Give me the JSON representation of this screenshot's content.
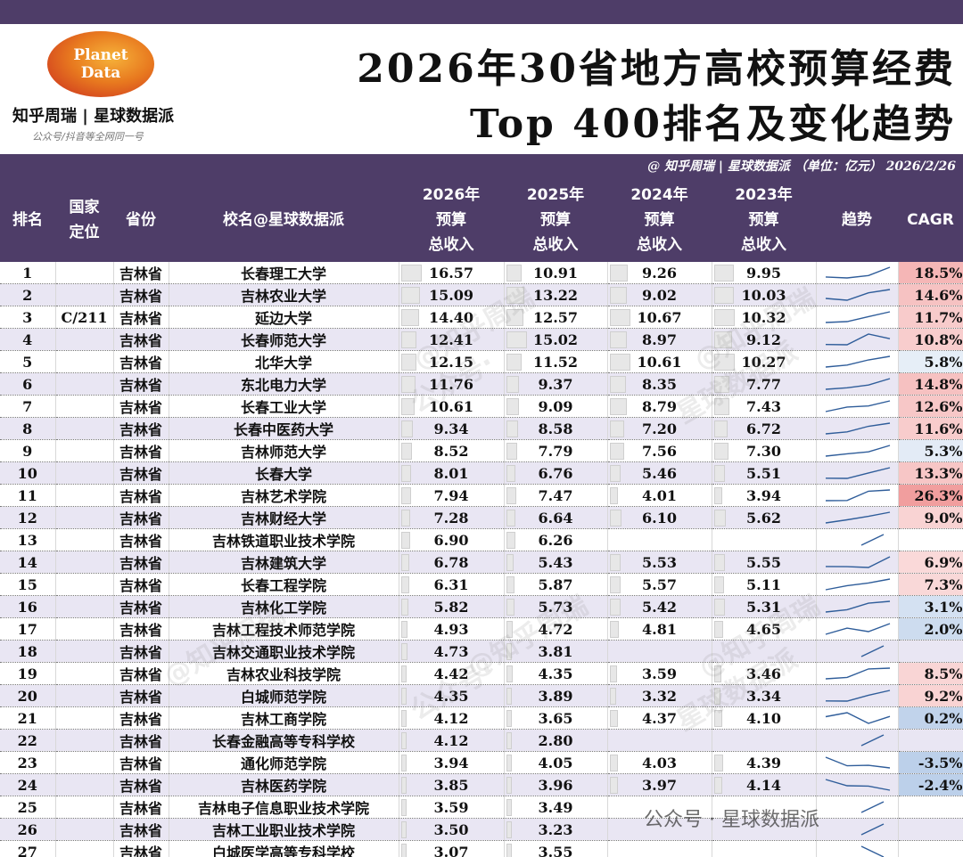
{
  "header": {
    "logo_line1": "Planet",
    "logo_line2": "Data",
    "brand": "知乎周瑞 | 星球数据派",
    "brand_sub": "公众号/抖音等全网同一号",
    "title_line1": "2026年30省地方高校预算经费",
    "title_line2": "Top 400排名及变化趋势",
    "subtitle": "@ 知乎周瑞 | 星球数据派 （单位：亿元） 2026/2/26"
  },
  "columns": {
    "rank": "排名",
    "pos_l1": "国家",
    "pos_l2": "定位",
    "province": "省份",
    "school": "校名@星球数据派",
    "y2026_l1": "2026年",
    "y2025_l1": "2025年",
    "y2024_l1": "2024年",
    "y2023_l1": "2023年",
    "budget": "预算",
    "total": "总收入",
    "trend": "趋势",
    "cagr": "CAGR"
  },
  "watermarks": {
    "handle": "@知乎周瑞",
    "account": "公众号·",
    "brand": "星球数据派",
    "bottom": "公众号 · 星球数据派"
  },
  "colors": {
    "header_bg": "#4e3d68",
    "cagr_positive": "#f4b6b6",
    "cagr_negative": "#bcd0ea",
    "trend_line": "#2f5d9a"
  },
  "chart_data": {
    "type": "table",
    "unit": "亿元",
    "columns": [
      "排名",
      "国家定位",
      "省份",
      "校名",
      "2026",
      "2025",
      "2024",
      "2023",
      "CAGR"
    ],
    "rows": [
      {
        "rank": "1",
        "pos": "",
        "province": "吉林省",
        "school": "长春理工大学",
        "y2026": 16.57,
        "y2025": 10.91,
        "y2024": 9.26,
        "y2023": 9.95,
        "cagr": "18.5%"
      },
      {
        "rank": "2",
        "pos": "",
        "province": "吉林省",
        "school": "吉林农业大学",
        "y2026": 15.09,
        "y2025": 13.22,
        "y2024": 9.02,
        "y2023": 10.03,
        "cagr": "14.6%"
      },
      {
        "rank": "3",
        "pos": "C/211",
        "province": "吉林省",
        "school": "延边大学",
        "y2026": 14.4,
        "y2025": 12.57,
        "y2024": 10.67,
        "y2023": 10.32,
        "cagr": "11.7%"
      },
      {
        "rank": "4",
        "pos": "",
        "province": "吉林省",
        "school": "长春师范大学",
        "y2026": 12.41,
        "y2025": 15.02,
        "y2024": 8.97,
        "y2023": 9.12,
        "cagr": "10.8%"
      },
      {
        "rank": "5",
        "pos": "",
        "province": "吉林省",
        "school": "北华大学",
        "y2026": 12.15,
        "y2025": 11.52,
        "y2024": 10.61,
        "y2023": 10.27,
        "cagr": "5.8%"
      },
      {
        "rank": "6",
        "pos": "",
        "province": "吉林省",
        "school": "东北电力大学",
        "y2026": 11.76,
        "y2025": 9.37,
        "y2024": 8.35,
        "y2023": 7.77,
        "cagr": "14.8%"
      },
      {
        "rank": "7",
        "pos": "",
        "province": "吉林省",
        "school": "长春工业大学",
        "y2026": 10.61,
        "y2025": 9.09,
        "y2024": 8.79,
        "y2023": 7.43,
        "cagr": "12.6%"
      },
      {
        "rank": "8",
        "pos": "",
        "province": "吉林省",
        "school": "长春中医药大学",
        "y2026": 9.34,
        "y2025": 8.58,
        "y2024": 7.2,
        "y2023": 6.72,
        "cagr": "11.6%"
      },
      {
        "rank": "9",
        "pos": "",
        "province": "吉林省",
        "school": "吉林师范大学",
        "y2026": 8.52,
        "y2025": 7.79,
        "y2024": 7.56,
        "y2023": 7.3,
        "cagr": "5.3%"
      },
      {
        "rank": "10",
        "pos": "",
        "province": "吉林省",
        "school": "长春大学",
        "y2026": 8.01,
        "y2025": 6.76,
        "y2024": 5.46,
        "y2023": 5.51,
        "cagr": "13.3%"
      },
      {
        "rank": "11",
        "pos": "",
        "province": "吉林省",
        "school": "吉林艺术学院",
        "y2026": 7.94,
        "y2025": 7.47,
        "y2024": 4.01,
        "y2023": 3.94,
        "cagr": "26.3%"
      },
      {
        "rank": "12",
        "pos": "",
        "province": "吉林省",
        "school": "吉林财经大学",
        "y2026": 7.28,
        "y2025": 6.64,
        "y2024": 6.1,
        "y2023": 5.62,
        "cagr": "9.0%"
      },
      {
        "rank": "13",
        "pos": "",
        "province": "吉林省",
        "school": "吉林铁道职业技术学院",
        "y2026": 6.9,
        "y2025": 6.26,
        "y2024": null,
        "y2023": null,
        "cagr": ""
      },
      {
        "rank": "14",
        "pos": "",
        "province": "吉林省",
        "school": "吉林建筑大学",
        "y2026": 6.78,
        "y2025": 5.43,
        "y2024": 5.53,
        "y2023": 5.55,
        "cagr": "6.9%"
      },
      {
        "rank": "15",
        "pos": "",
        "province": "吉林省",
        "school": "长春工程学院",
        "y2026": 6.31,
        "y2025": 5.87,
        "y2024": 5.57,
        "y2023": 5.11,
        "cagr": "7.3%"
      },
      {
        "rank": "16",
        "pos": "",
        "province": "吉林省",
        "school": "吉林化工学院",
        "y2026": 5.82,
        "y2025": 5.73,
        "y2024": 5.42,
        "y2023": 5.31,
        "cagr": "3.1%"
      },
      {
        "rank": "17",
        "pos": "",
        "province": "吉林省",
        "school": "吉林工程技术师范学院",
        "y2026": 4.93,
        "y2025": 4.72,
        "y2024": 4.81,
        "y2023": 4.65,
        "cagr": "2.0%"
      },
      {
        "rank": "18",
        "pos": "",
        "province": "吉林省",
        "school": "吉林交通职业技术学院",
        "y2026": 4.73,
        "y2025": 3.81,
        "y2024": null,
        "y2023": null,
        "cagr": ""
      },
      {
        "rank": "19",
        "pos": "",
        "province": "吉林省",
        "school": "吉林农业科技学院",
        "y2026": 4.42,
        "y2025": 4.35,
        "y2024": 3.59,
        "y2023": 3.46,
        "cagr": "8.5%"
      },
      {
        "rank": "20",
        "pos": "",
        "province": "吉林省",
        "school": "白城师范学院",
        "y2026": 4.35,
        "y2025": 3.89,
        "y2024": 3.32,
        "y2023": 3.34,
        "cagr": "9.2%"
      },
      {
        "rank": "21",
        "pos": "",
        "province": "吉林省",
        "school": "吉林工商学院",
        "y2026": 4.12,
        "y2025": 3.65,
        "y2024": 4.37,
        "y2023": 4.1,
        "cagr": "0.2%"
      },
      {
        "rank": "22",
        "pos": "",
        "province": "吉林省",
        "school": "长春金融高等专科学校",
        "y2026": 4.12,
        "y2025": 2.8,
        "y2024": null,
        "y2023": null,
        "cagr": ""
      },
      {
        "rank": "23",
        "pos": "",
        "province": "吉林省",
        "school": "通化师范学院",
        "y2026": 3.94,
        "y2025": 4.05,
        "y2024": 4.03,
        "y2023": 4.39,
        "cagr": "-3.5%"
      },
      {
        "rank": "24",
        "pos": "",
        "province": "吉林省",
        "school": "吉林医药学院",
        "y2026": 3.85,
        "y2025": 3.96,
        "y2024": 3.97,
        "y2023": 4.14,
        "cagr": "-2.4%"
      },
      {
        "rank": "25",
        "pos": "",
        "province": "吉林省",
        "school": "吉林电子信息职业技术学院",
        "y2026": 3.59,
        "y2025": 3.49,
        "y2024": null,
        "y2023": null,
        "cagr": ""
      },
      {
        "rank": "26",
        "pos": "",
        "province": "吉林省",
        "school": "吉林工业职业技术学院",
        "y2026": 3.5,
        "y2025": 3.23,
        "y2024": null,
        "y2023": null,
        "cagr": ""
      },
      {
        "rank": "27",
        "pos": "",
        "province": "吉林省",
        "school": "白城医学高等专科学校",
        "y2026": 3.07,
        "y2025": 3.55,
        "y2024": null,
        "y2023": null,
        "cagr": ""
      }
    ]
  }
}
